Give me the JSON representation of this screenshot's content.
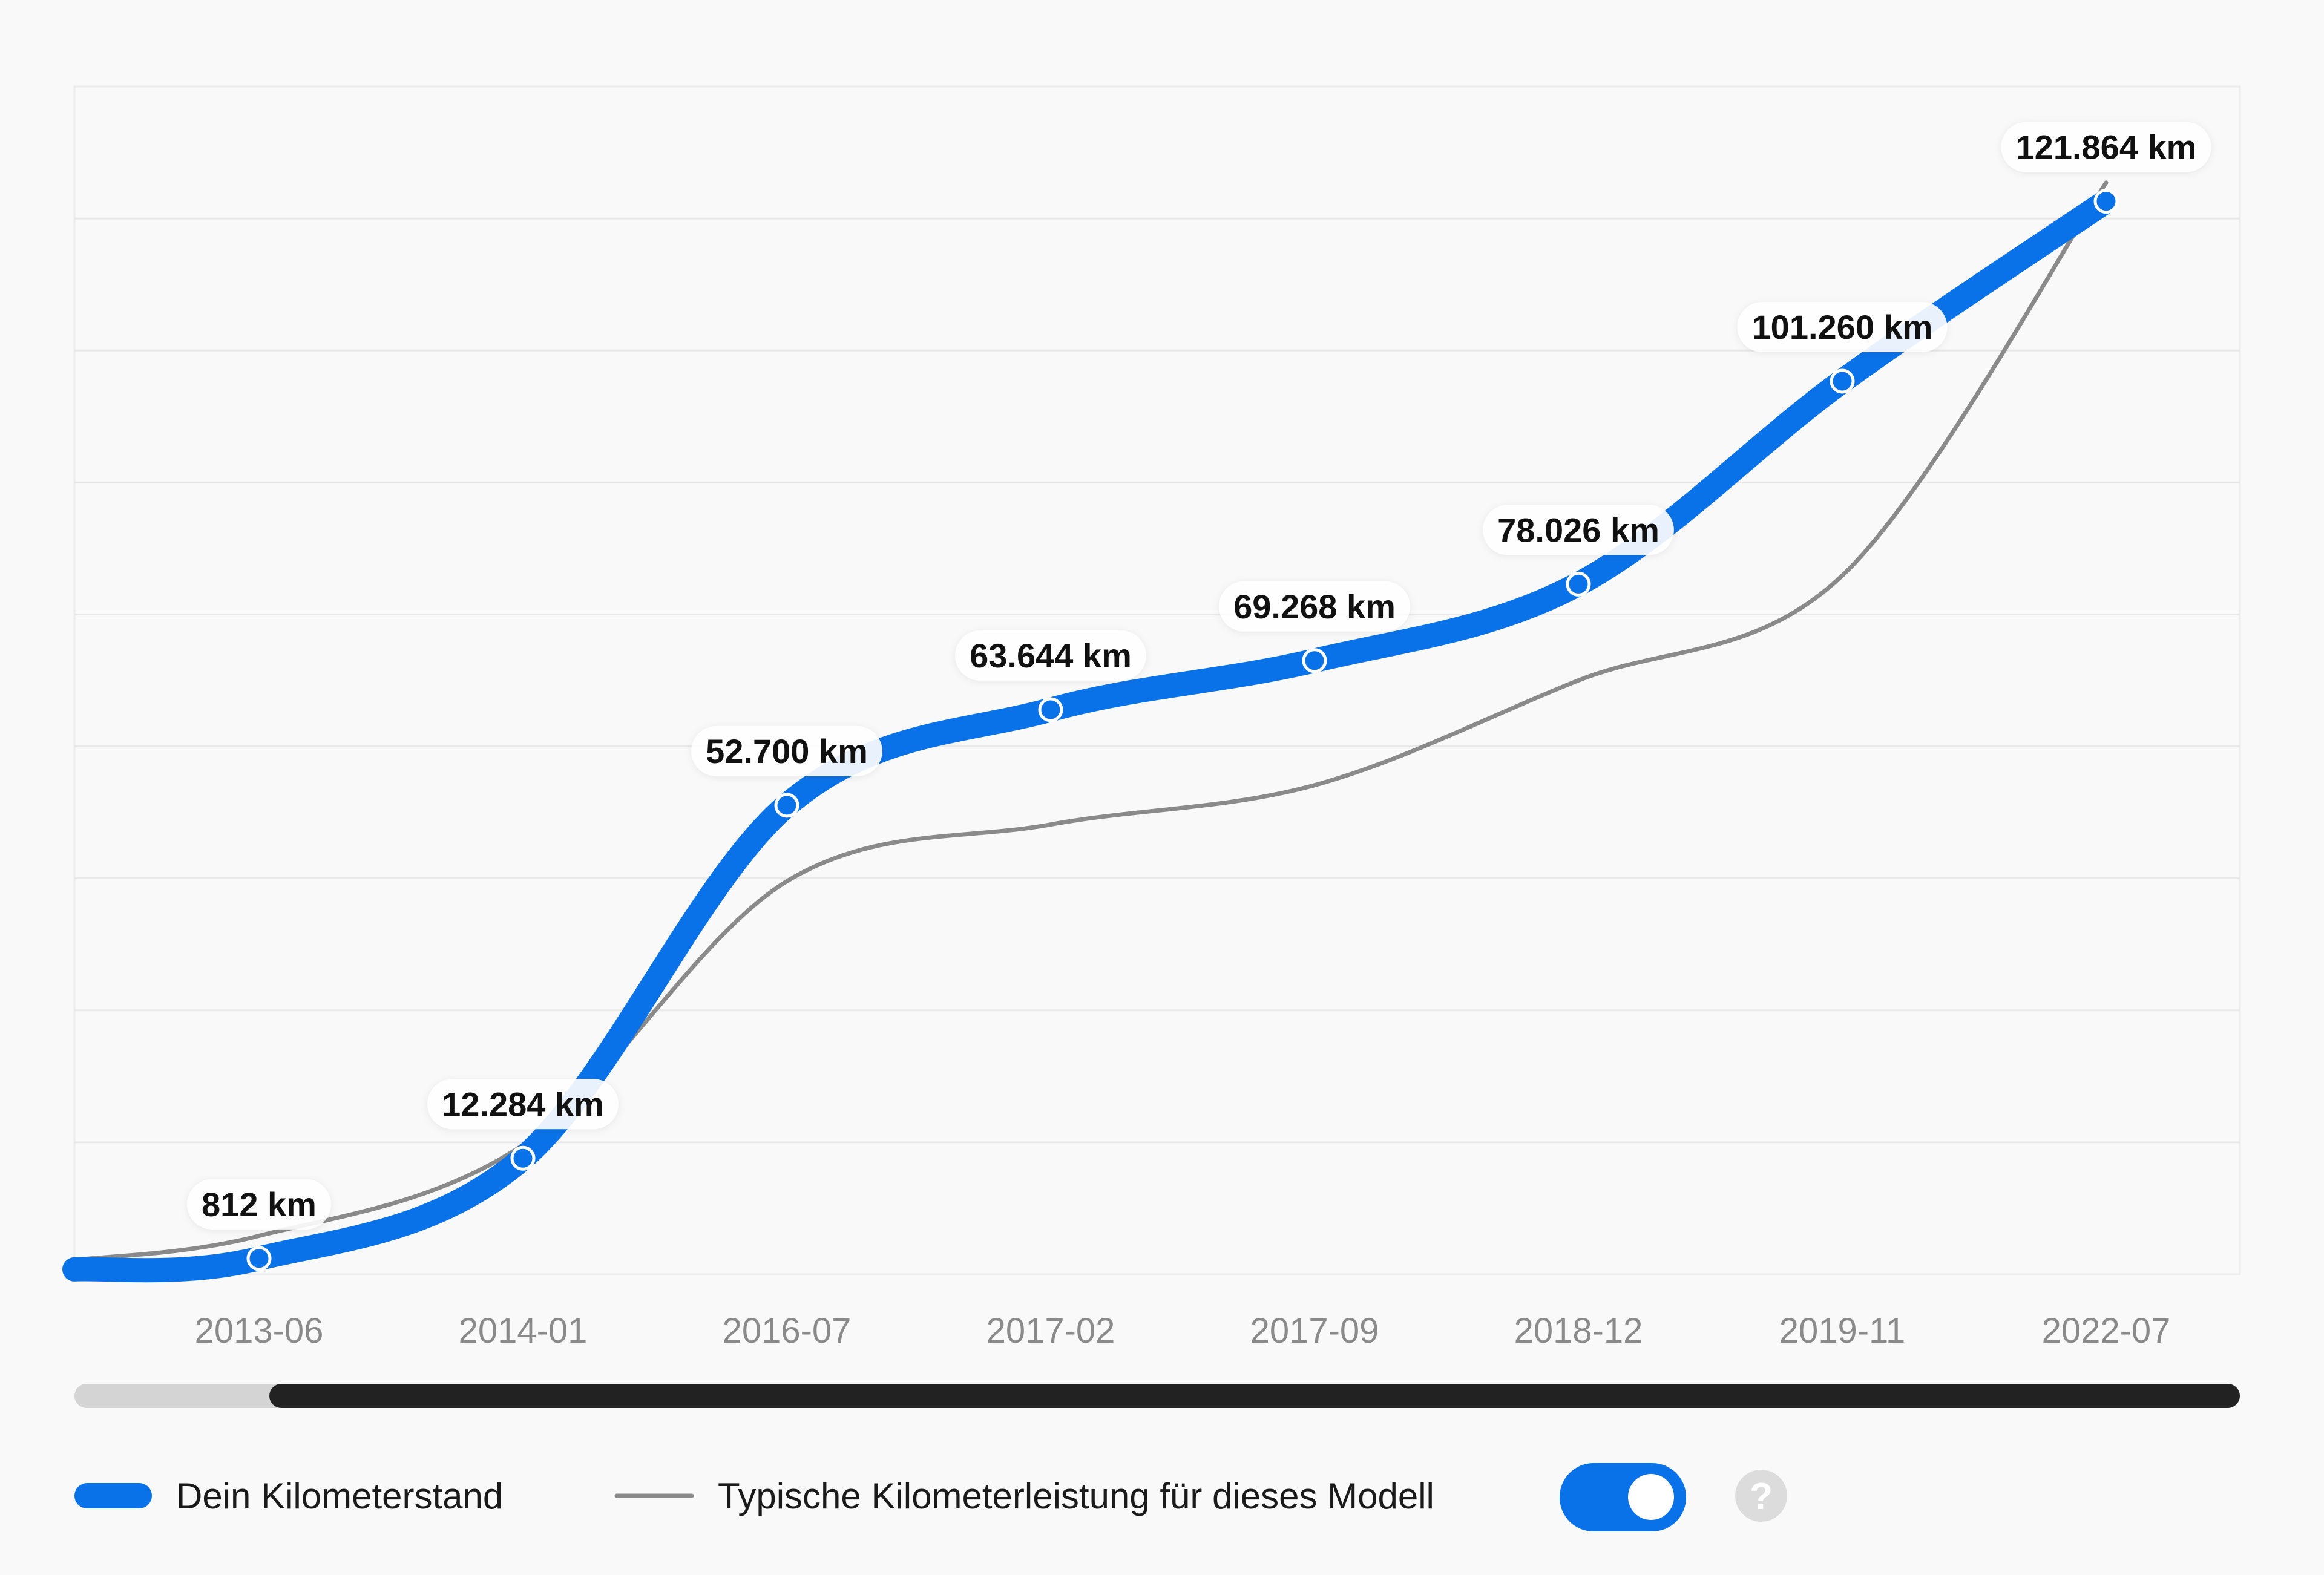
{
  "chart_data": {
    "type": "line",
    "categories": [
      "2013-06",
      "2014-01",
      "2016-07",
      "2017-02",
      "2017-09",
      "2018-12",
      "2019-11",
      "2022-07"
    ],
    "series": [
      {
        "name": "Dein Kilometerstand",
        "color": "#0a72e8",
        "values": [
          812,
          12284,
          52700,
          63644,
          69268,
          78026,
          101260,
          121864
        ],
        "data_labels": [
          "812 km",
          "12.284 km",
          "52.700 km",
          "63.644 km",
          "69.268 km",
          "78.026 km",
          "101.260 km",
          "121.864 km"
        ]
      },
      {
        "name": "Typische Kilometerleistung für dieses Modell",
        "color": "#8a8a8a",
        "values": [
          3400,
          13800,
          44000,
          50500,
          55000,
          67000,
          79000,
          124000
        ]
      }
    ],
    "ylim": [
      -1000,
      135000
    ],
    "grid": "horizontal",
    "legend_position": "bottom-left",
    "range_scrollbar": {
      "start_fraction": 0.09,
      "end_fraction": 1.0
    }
  },
  "legend": {
    "toggle_on": true,
    "accent_color": "#0a72e8",
    "help_icon": "?"
  }
}
